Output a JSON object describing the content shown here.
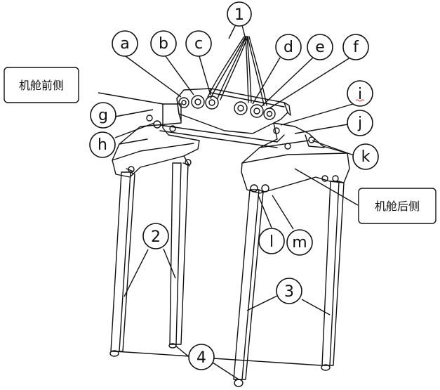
{
  "colors": {
    "stroke": "#111111",
    "background": "#ffffff",
    "mark": "#d33333"
  },
  "labels": {
    "n1": "1",
    "n2": "2",
    "n3": "3",
    "n4": "4",
    "a": "a",
    "b": "b",
    "c": "c",
    "d": "d",
    "e": "e",
    "f": "f",
    "g": "g",
    "h": "h",
    "i": "i",
    "j": "j",
    "k": "k",
    "l": "l",
    "m": "m",
    "front": "机舱前侧",
    "rear": "机舱后侧"
  }
}
